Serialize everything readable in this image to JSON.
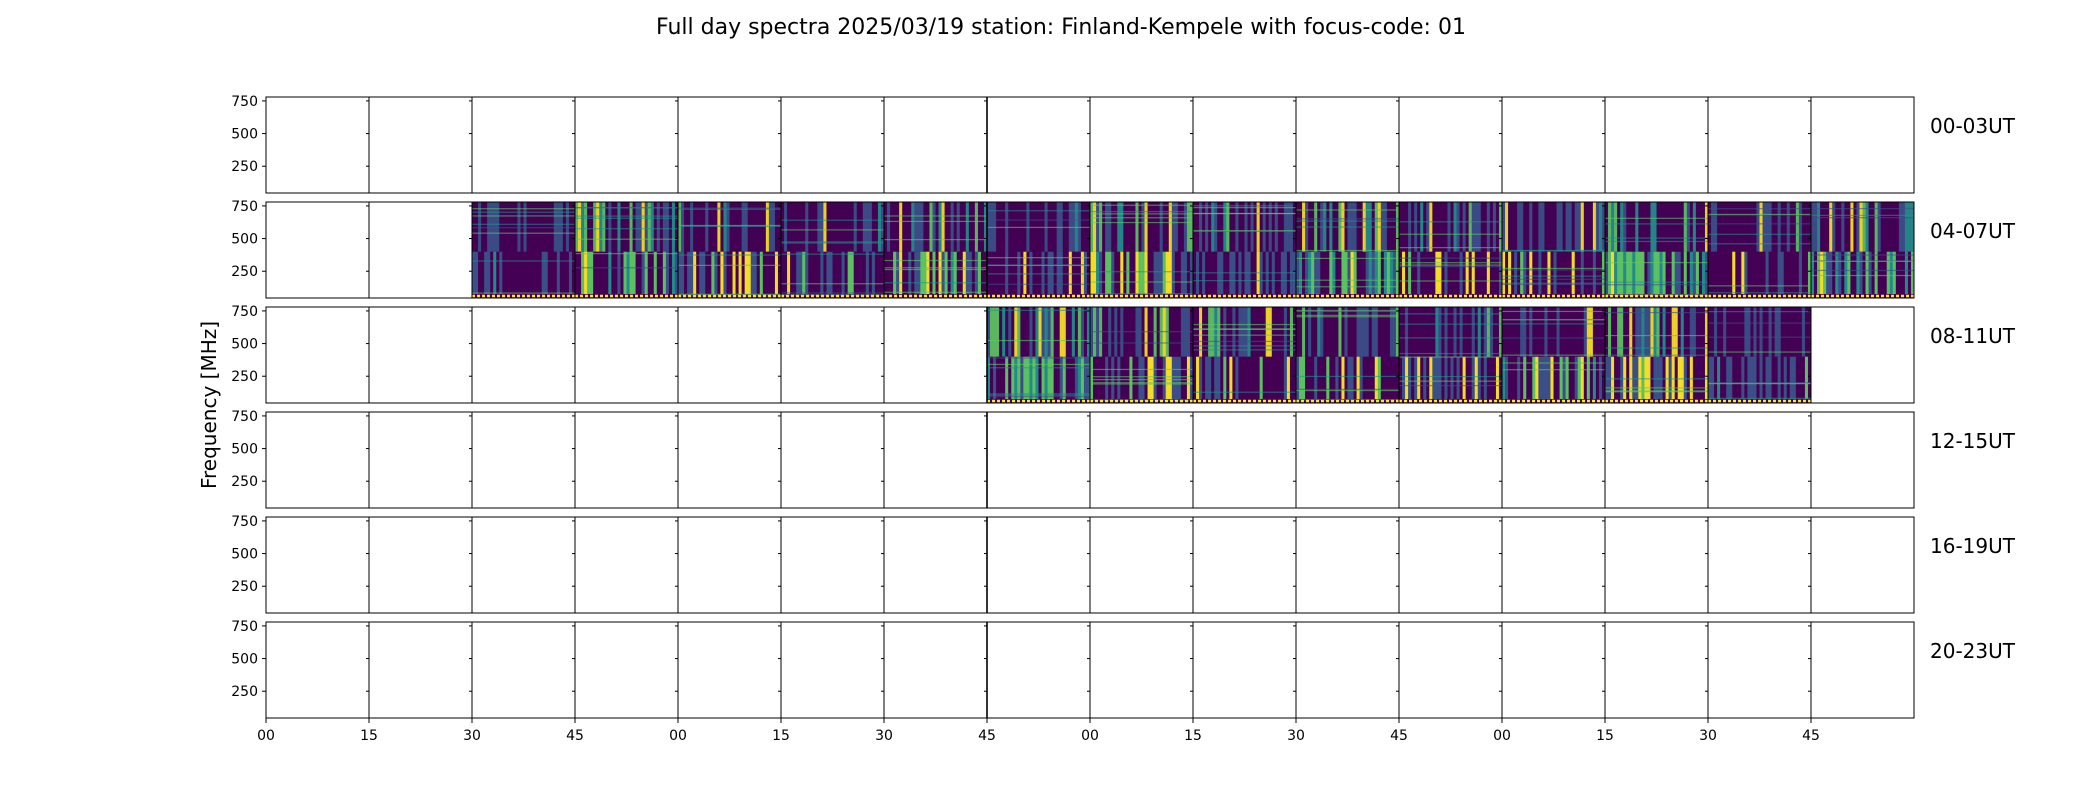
{
  "chart_data": {
    "type": "heatmap",
    "title": "Full day spectra 2025/03/19 station: Finland-Kempele with focus-code: 01",
    "ylabel": "Frequency [MHz]",
    "yticks": [
      250,
      500,
      750
    ],
    "ylim": [
      45,
      780
    ],
    "xticklabels": [
      "00",
      "15",
      "30",
      "45",
      "00",
      "15",
      "30",
      "45",
      "00",
      "15",
      "30",
      "45",
      "00",
      "15",
      "30",
      "45"
    ],
    "rows": [
      {
        "label": "00-03UT",
        "data_panels": []
      },
      {
        "label": "04-07UT",
        "data_panels": [
          2,
          3,
          4,
          5,
          6,
          7,
          8,
          9,
          10,
          11,
          12,
          13,
          14,
          15
        ]
      },
      {
        "label": "08-11UT",
        "data_panels": [
          7,
          8,
          9,
          10,
          11,
          12,
          13,
          14
        ]
      },
      {
        "label": "12-15UT",
        "data_panels": []
      },
      {
        "label": "16-19UT",
        "data_panels": []
      },
      {
        "label": "20-23UT",
        "data_panels": []
      }
    ],
    "colormap": [
      "#440154",
      "#3b528b",
      "#21918c",
      "#5ec962",
      "#fde725"
    ]
  }
}
